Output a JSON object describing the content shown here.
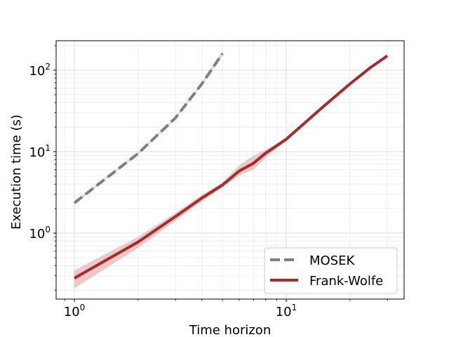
{
  "chart_data": {
    "type": "line",
    "title": "",
    "xlabel": "Time horizon",
    "ylabel": "Execution time (s)",
    "xscale": "log",
    "yscale": "log",
    "xlim": [
      0.82,
      36
    ],
    "ylim": [
      0.155,
      230
    ],
    "grid": "major and minor",
    "legend_position": "bottom-right",
    "x_ticks": [
      {
        "value": 1,
        "base": "10",
        "exp": "0"
      },
      {
        "value": 10,
        "base": "10",
        "exp": "1"
      }
    ],
    "y_ticks": [
      {
        "value": 1,
        "base": "10",
        "exp": "0"
      },
      {
        "value": 10,
        "base": "10",
        "exp": "1"
      },
      {
        "value": 100,
        "base": "10",
        "exp": "2"
      }
    ],
    "series": [
      {
        "name": "MOSEK",
        "style": "dashed",
        "color": "#7f7f7f",
        "band_color": "#cccccc",
        "x": [
          1,
          2,
          3,
          4,
          5
        ],
        "y": [
          2.35,
          9.5,
          26,
          68,
          160
        ],
        "y_low": [
          2.25,
          9.2,
          25,
          65,
          150
        ],
        "y_high": [
          2.45,
          9.8,
          27,
          71,
          172
        ]
      },
      {
        "name": "Frank-Wolfe",
        "style": "solid",
        "color": "#a82a2a",
        "band_color": "#e6b3b3",
        "x": [
          1,
          2,
          3,
          4,
          5,
          6,
          7,
          8,
          9,
          10,
          15,
          20,
          25,
          30
        ],
        "y": [
          0.28,
          0.78,
          1.6,
          2.7,
          3.9,
          5.8,
          7.2,
          9.6,
          11.8,
          14.2,
          36,
          68,
          108,
          150
        ],
        "y_low": [
          0.21,
          0.66,
          1.42,
          2.45,
          3.65,
          5.1,
          6.0,
          8.5,
          11.0,
          13.6,
          34,
          65,
          104,
          144
        ],
        "y_high": [
          0.35,
          0.9,
          1.78,
          2.95,
          4.15,
          6.8,
          8.9,
          10.6,
          12.5,
          14.9,
          38,
          71,
          112,
          156
        ]
      }
    ]
  }
}
